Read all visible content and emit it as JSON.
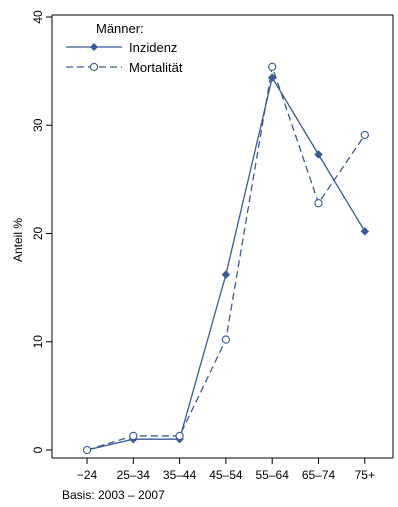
{
  "chart_data": {
    "type": "line",
    "categories": [
      "−24",
      "25–34",
      "35–44",
      "45–54",
      "55–64",
      "65–74",
      "75+"
    ],
    "ylabel": "Anteil %",
    "ylim": [
      0,
      40
    ],
    "yticks": [
      "0",
      "10",
      "20",
      "30",
      "40"
    ],
    "legend_title": "Männer:",
    "legend_position": "top-left",
    "note": "Basis: 2003 – 2007",
    "series": [
      {
        "name": "Inzidenz",
        "values": [
          0.0,
          1.0,
          1.0,
          16.2,
          34.4,
          27.3,
          20.2
        ],
        "style": "solid",
        "marker": "diamond",
        "color": "#3b5a98"
      },
      {
        "name": "Mortalität",
        "values": [
          0.0,
          1.3,
          1.3,
          10.2,
          35.4,
          22.8,
          29.1
        ],
        "style": "dashed",
        "marker": "hollow-circle",
        "color": "#3b5a98"
      }
    ]
  }
}
